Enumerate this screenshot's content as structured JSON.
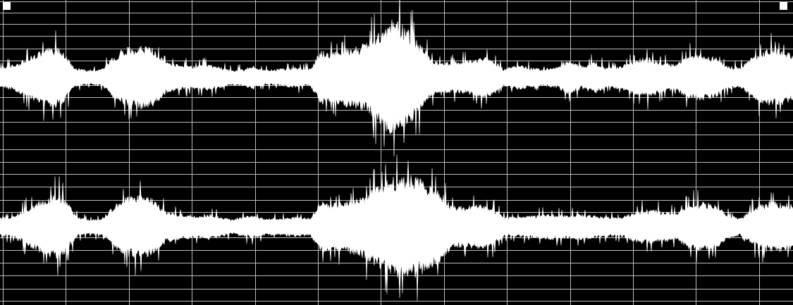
{
  "colors": {
    "background": "#000000",
    "waveform": "#ffffff",
    "grid": "#bdbdbd",
    "handle": "#ffffff"
  },
  "view": {
    "channels": [
      "channel-1",
      "channel-2"
    ],
    "grid": true,
    "selection_handles": [
      "left",
      "right"
    ]
  }
}
